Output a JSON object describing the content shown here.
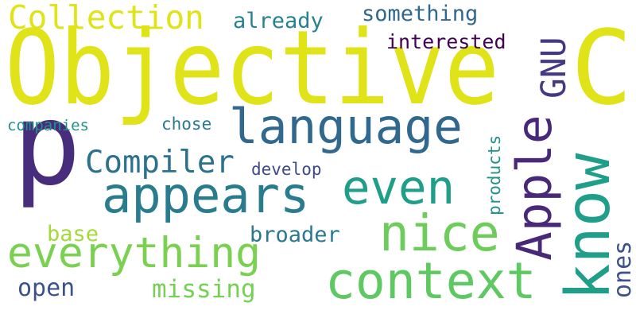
{
  "words": [
    {
      "text": "Objective",
      "color": "#dfe318"
    },
    {
      "text": "C",
      "color": "#dfe318"
    },
    {
      "text": "p",
      "color": "#472d7b"
    },
    {
      "text": "language",
      "color": "#31688e"
    },
    {
      "text": "Collection",
      "color": "#dfe318"
    },
    {
      "text": "already",
      "color": "#26828e"
    },
    {
      "text": "something",
      "color": "#31688e"
    },
    {
      "text": "GNU",
      "color": "#443983"
    },
    {
      "text": "interested",
      "color": "#440154"
    },
    {
      "text": "Apple",
      "color": "#482878"
    },
    {
      "text": "know",
      "color": "#1f9e89"
    },
    {
      "text": "appears",
      "color": "#287c8e"
    },
    {
      "text": "even",
      "color": "#1f9e89"
    },
    {
      "text": "Compiler",
      "color": "#2c728e"
    },
    {
      "text": "develop",
      "color": "#3e4989"
    },
    {
      "text": "companies",
      "color": "#21918c"
    },
    {
      "text": "chose",
      "color": "#2a788e"
    },
    {
      "text": "products",
      "color": "#21918c"
    },
    {
      "text": "nice",
      "color": "#6ccd5a"
    },
    {
      "text": "everything",
      "color": "#7ad151"
    },
    {
      "text": "context",
      "color": "#5ec962"
    },
    {
      "text": "broader",
      "color": "#2a788e"
    },
    {
      "text": "base",
      "color": "#a2da37"
    },
    {
      "text": "ones",
      "color": "#3b528b"
    },
    {
      "text": "open",
      "color": "#3b528b"
    },
    {
      "text": "missing",
      "color": "#75d054"
    }
  ]
}
